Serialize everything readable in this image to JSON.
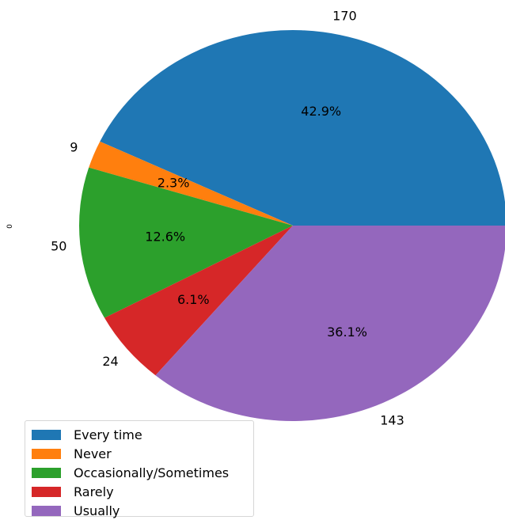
{
  "chart_data": {
    "type": "pie",
    "title": "",
    "ylabel": "0",
    "categories": [
      "Every time",
      "Never",
      "Occasionally/Sometimes",
      "Rarely",
      "Usually"
    ],
    "values": [
      170,
      9,
      50,
      24,
      143
    ],
    "percent_labels": [
      "42.9%",
      "2.3%",
      "12.6%",
      "6.1%",
      "36.1%"
    ],
    "value_labels": [
      "170",
      "9",
      "50",
      "24",
      "143"
    ],
    "colors": [
      "#1f77b4",
      "#ff7f0e",
      "#2ca02c",
      "#d62728",
      "#9467bd"
    ],
    "start_angle_deg": 0,
    "direction": "counterclockwise",
    "legend": {
      "placement": "lower-left"
    }
  }
}
